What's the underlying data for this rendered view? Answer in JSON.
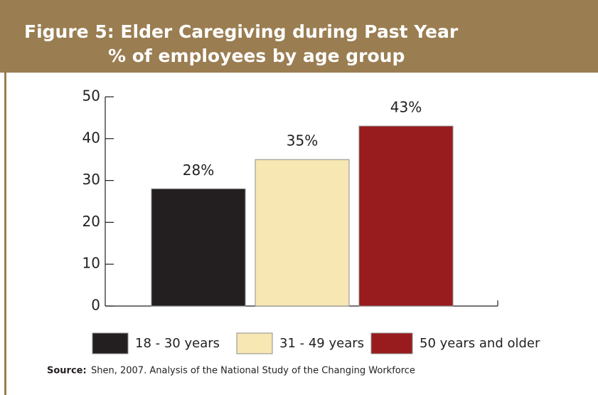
{
  "chart_data": {
    "type": "bar",
    "title": "Figure 5: Elder Caregiving during Past Year",
    "subtitle": "% of employees by age group",
    "categories": [
      "18 - 30 years",
      "31 - 49 years",
      "50 years and older"
    ],
    "values": [
      28,
      35,
      43
    ],
    "value_labels": [
      "28%",
      "35%",
      "43%"
    ],
    "colors": [
      "#231f20",
      "#f6e7b3",
      "#981b1e"
    ],
    "ylim": [
      0,
      50
    ],
    "yticks": [
      0,
      10,
      20,
      30,
      40,
      50
    ],
    "grid": false,
    "source_label": "Source:",
    "source": "Shen, 2007.  Analysis of the National Study of the Changing Workforce"
  }
}
